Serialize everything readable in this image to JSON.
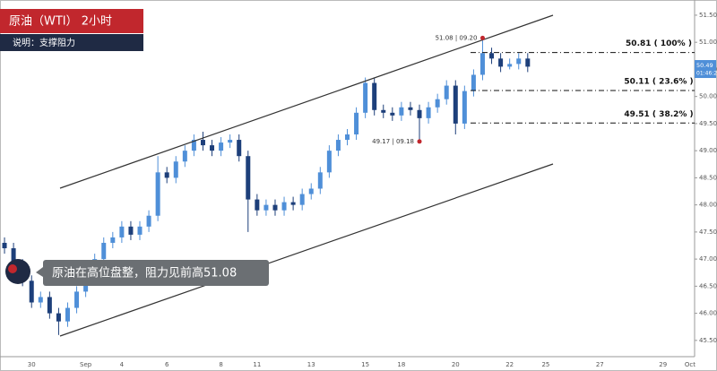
{
  "header": {
    "title": "原油（WTI） 2小时",
    "subtitle": "说明：支撑阻力"
  },
  "comment": "原油在高位盘整，阻力见前高51.08",
  "chart_data": {
    "type": "candlestick",
    "categories": [
      null,
      null,
      null,
      "30",
      null,
      null,
      null,
      null,
      null,
      "Sep",
      null,
      null,
      null,
      "4",
      null,
      null,
      null,
      null,
      "6",
      null,
      null,
      null,
      null,
      null,
      "8",
      null,
      null,
      null,
      "11",
      null,
      null,
      null,
      null,
      null,
      "13",
      null,
      null,
      null,
      null,
      null,
      "15",
      null,
      null,
      null,
      "18",
      null,
      null,
      null,
      null,
      null,
      "20",
      null,
      null,
      null,
      null,
      null,
      "22",
      null,
      null,
      null,
      "25",
      null,
      null,
      null,
      null,
      null,
      "27",
      null,
      null,
      null,
      null,
      null,
      null,
      "29",
      null,
      null,
      "Oct"
    ],
    "open": [
      47.3,
      47.2,
      46.9,
      46.6,
      46.2,
      46.3,
      46.0,
      45.85,
      46.1,
      46.4,
      46.7,
      47.0,
      47.3,
      47.4,
      47.6,
      47.45,
      47.6,
      47.8,
      48.6,
      48.5,
      48.8,
      49.0,
      49.2,
      49.1,
      49.0,
      49.15,
      49.2,
      48.9,
      48.1,
      47.9,
      48.0,
      47.9,
      48.05,
      48.0,
      48.2,
      48.3,
      48.6,
      49.0,
      49.2,
      49.3,
      49.7,
      50.25,
      49.75,
      49.7,
      49.65,
      49.8,
      49.75,
      49.6,
      49.8,
      49.95,
      50.2,
      49.5,
      50.1,
      50.4,
      50.8,
      50.7,
      50.55,
      50.6,
      50.7,
      null,
      null,
      null,
      null,
      null,
      null,
      null,
      null,
      null,
      null,
      null,
      null,
      null,
      null,
      null,
      null,
      null,
      null
    ],
    "high": [
      47.4,
      47.3,
      47.0,
      46.7,
      46.4,
      46.4,
      46.1,
      46.2,
      46.5,
      46.8,
      47.1,
      47.4,
      47.5,
      47.7,
      47.7,
      47.7,
      47.9,
      48.9,
      48.7,
      48.9,
      49.1,
      49.3,
      49.35,
      49.2,
      49.25,
      49.3,
      49.3,
      49.0,
      48.2,
      48.1,
      48.1,
      48.15,
      48.15,
      48.3,
      48.4,
      48.7,
      49.1,
      49.3,
      49.4,
      49.8,
      50.35,
      50.35,
      49.85,
      49.8,
      49.9,
      49.9,
      49.85,
      49.9,
      50.05,
      50.3,
      50.3,
      50.2,
      50.5,
      51.08,
      50.9,
      50.8,
      50.7,
      50.8,
      50.8,
      null,
      null,
      null,
      null,
      null,
      null,
      null,
      null,
      null,
      null,
      null,
      null,
      null,
      null,
      null,
      null,
      null,
      null
    ],
    "low": [
      47.1,
      46.8,
      46.5,
      46.1,
      46.1,
      45.9,
      45.6,
      45.75,
      46.0,
      46.3,
      46.6,
      46.9,
      47.2,
      47.3,
      47.35,
      47.35,
      47.5,
      47.7,
      48.4,
      48.4,
      48.7,
      48.9,
      49.0,
      48.9,
      48.9,
      49.05,
      48.8,
      47.5,
      47.8,
      47.8,
      47.8,
      47.8,
      47.9,
      47.9,
      48.1,
      48.2,
      48.5,
      48.9,
      49.1,
      49.2,
      49.6,
      49.65,
      49.6,
      49.55,
      49.55,
      49.65,
      49.17,
      49.5,
      49.7,
      49.85,
      49.3,
      49.4,
      50.0,
      50.3,
      50.6,
      50.45,
      50.5,
      50.5,
      50.45,
      null,
      null,
      null,
      null,
      null,
      null,
      null,
      null,
      null,
      null,
      null,
      null,
      null,
      null,
      null,
      null,
      null,
      null
    ],
    "close": [
      47.2,
      46.9,
      46.6,
      46.2,
      46.3,
      46.0,
      45.85,
      46.1,
      46.4,
      46.7,
      47.0,
      47.3,
      47.4,
      47.6,
      47.45,
      47.6,
      47.8,
      48.6,
      48.5,
      48.8,
      49.0,
      49.2,
      49.1,
      49.0,
      49.15,
      49.2,
      48.9,
      48.1,
      47.9,
      48.0,
      47.9,
      48.05,
      48.0,
      48.2,
      48.3,
      48.6,
      49.0,
      49.2,
      49.3,
      49.7,
      50.25,
      49.75,
      49.7,
      49.65,
      49.8,
      49.75,
      49.6,
      49.8,
      49.95,
      50.2,
      49.5,
      50.1,
      50.4,
      50.8,
      50.7,
      50.55,
      50.6,
      50.7,
      50.55,
      null,
      null,
      null,
      null,
      null,
      null,
      null,
      null,
      null,
      null,
      null,
      null,
      null,
      null,
      null,
      null,
      null,
      null
    ],
    "up_color": "#4f8fd8",
    "down_color": "#1d3f7a",
    "ylim": [
      45.2,
      51.78
    ],
    "yticks": [
      {
        "value": 45.5,
        "label": "45.50"
      },
      {
        "value": 46,
        "label": "46.00"
      },
      {
        "value": 46.5,
        "label": "46.50"
      },
      {
        "value": 47,
        "label": "47.00"
      },
      {
        "value": 47.5,
        "label": "47.50"
      },
      {
        "value": 48,
        "label": "48.00"
      },
      {
        "value": 48.5,
        "label": "48.50"
      },
      {
        "value": 49,
        "label": "49.00"
      },
      {
        "value": 49.5,
        "label": "49.50"
      },
      {
        "value": 50,
        "label": "50.00"
      },
      {
        "value": 50.5,
        "label": "50.50"
      },
      {
        "value": 51,
        "label": "51.00"
      },
      {
        "value": 51.5,
        "label": "51.50"
      }
    ],
    "levels": [
      {
        "value": 50.81,
        "label": "50.81 ( 100% )"
      },
      {
        "value": 50.11,
        "label": "50.11 ( 23.6% )"
      },
      {
        "value": 49.51,
        "label": "49.51 ( 38.2% )"
      }
    ],
    "markers": [
      {
        "value": 51.08,
        "label": "51.08 | 09.20"
      },
      {
        "value": 49.17,
        "label": "49.17 | 09.18"
      }
    ],
    "price_tag": {
      "value": 50.49,
      "label": "50.49"
    },
    "countdown": "01:46:2"
  }
}
